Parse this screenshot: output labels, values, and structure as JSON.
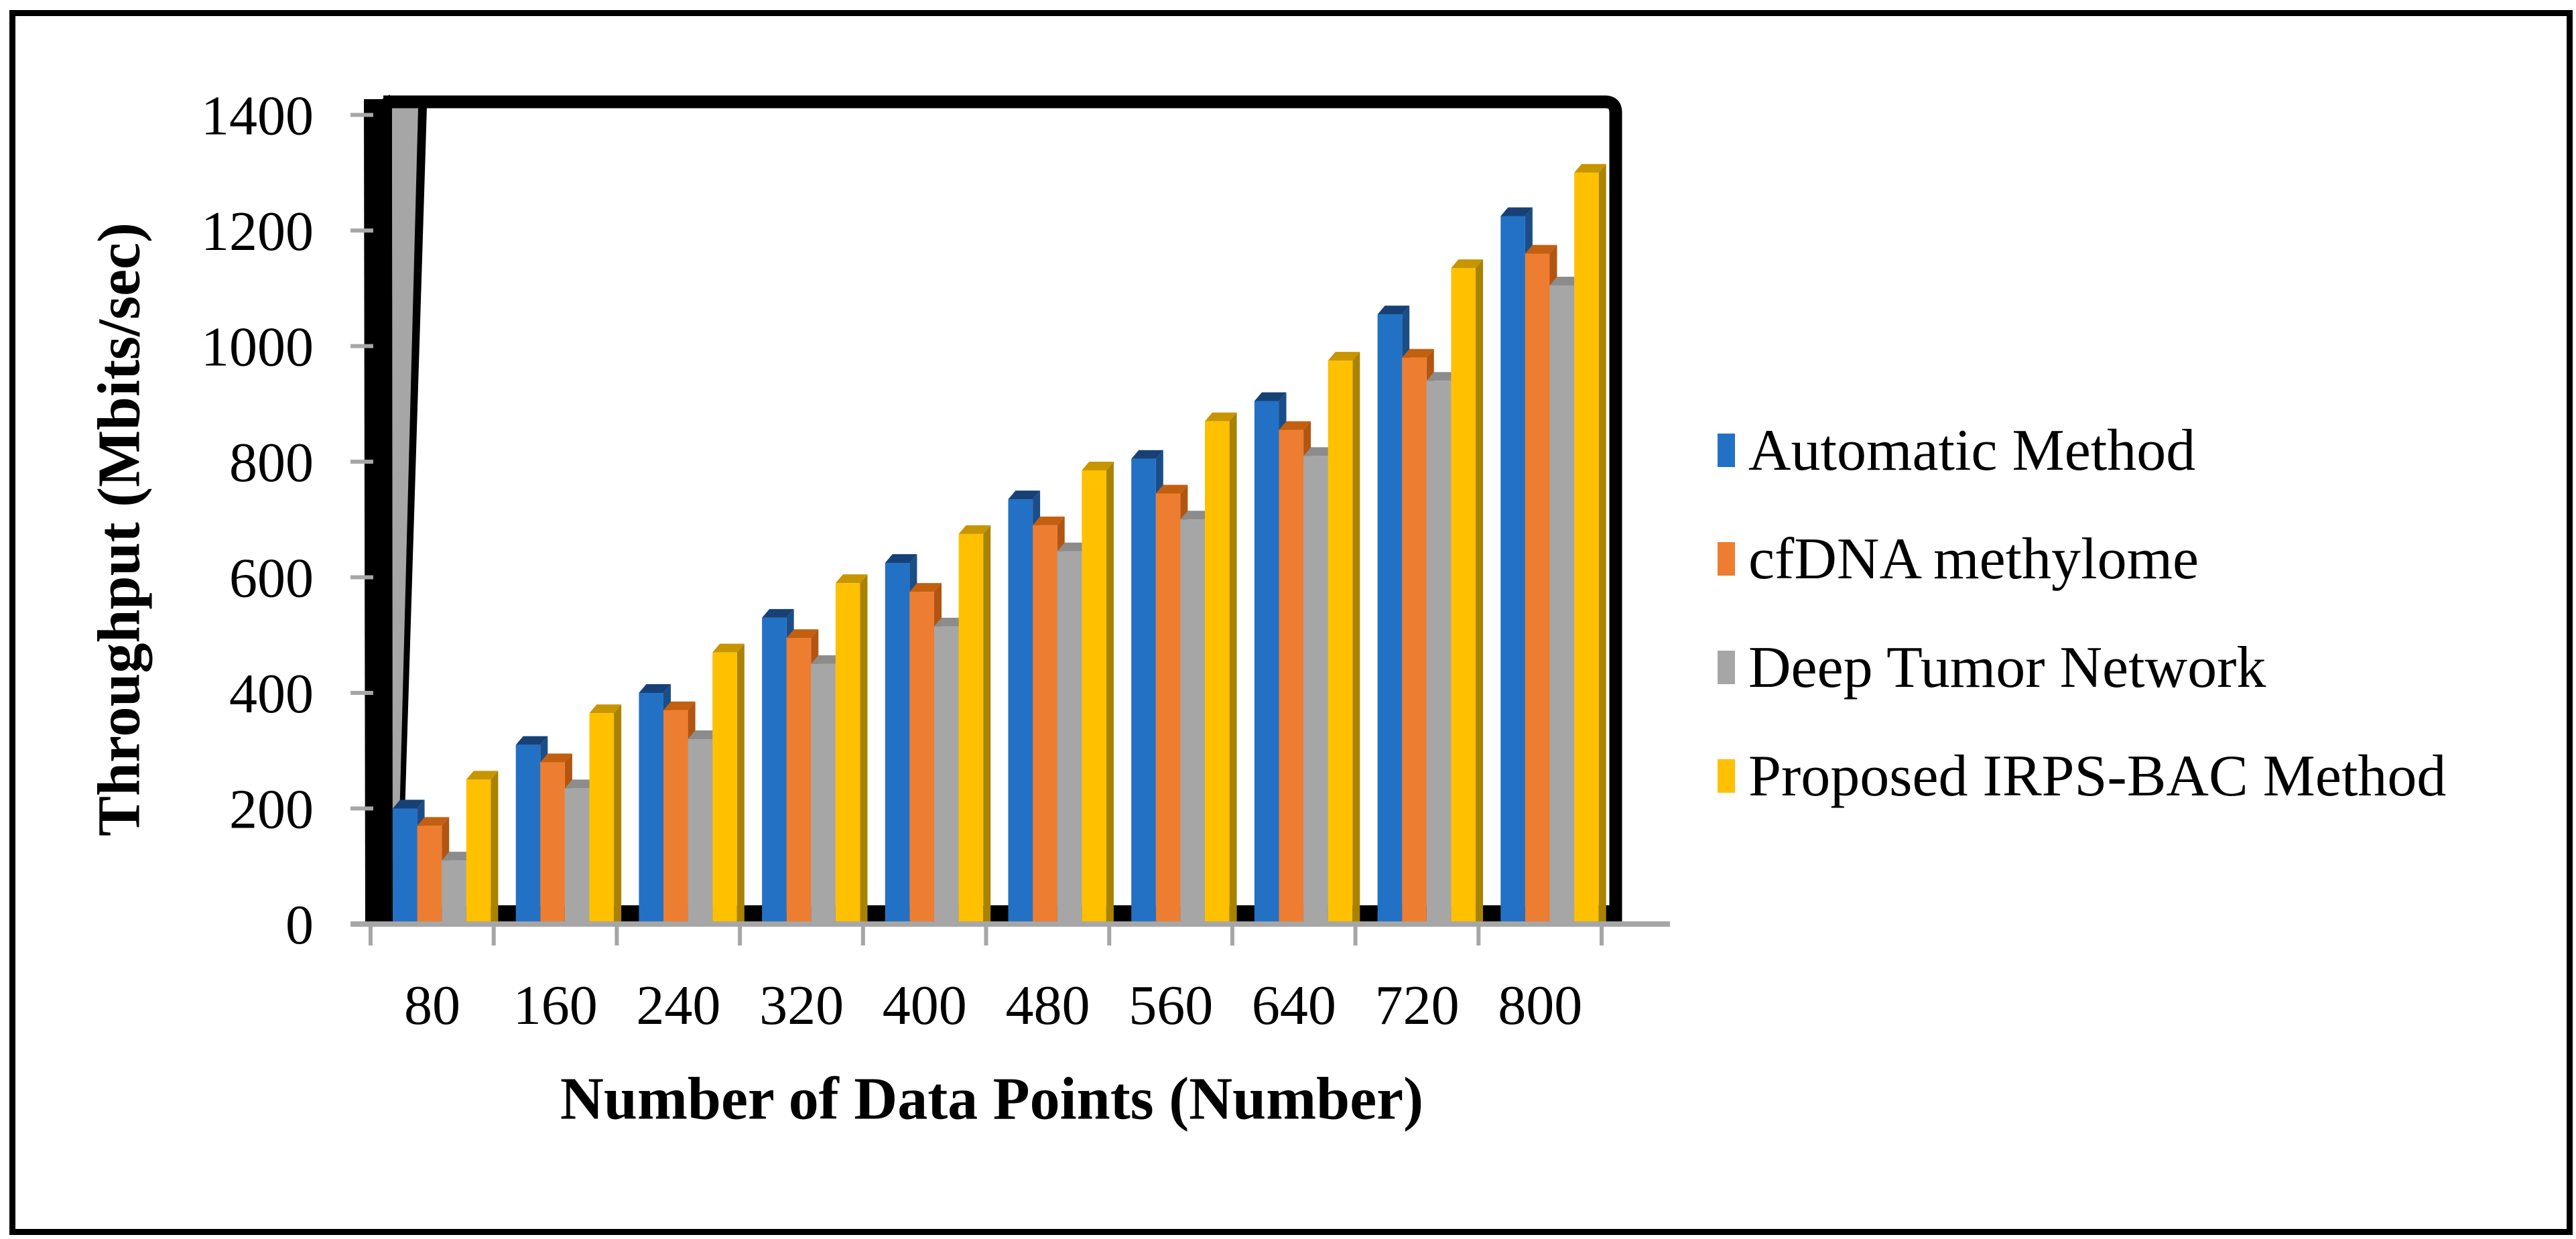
{
  "figure": {
    "background_color": "#ffffff",
    "border_color": "#000000"
  },
  "chart_data": {
    "type": "bar",
    "style": "3d-column",
    "title": "",
    "xlabel": "Number of Data Points (Number)",
    "ylabel": "Throughput (Mbits/sec)",
    "categories": [
      "80",
      "160",
      "240",
      "320",
      "400",
      "480",
      "560",
      "640",
      "720",
      "800"
    ],
    "series": [
      {
        "name": "Automatic Method",
        "color": "#2371C5",
        "color_side": "#1B4E87",
        "color_top": "#174176",
        "values": [
          200,
          310,
          400,
          530,
          625,
          735,
          805,
          905,
          1055,
          1225
        ]
      },
      {
        "name": "cfDNA methylome",
        "color": "#ED7D31",
        "color_side": "#B25510",
        "color_top": "#C2600F",
        "values": [
          170,
          280,
          370,
          495,
          575,
          690,
          745,
          855,
          980,
          1160
        ]
      },
      {
        "name": "Deep Tumor Network",
        "color": "#A6A6A6",
        "color_side": "#7F7F7F",
        "color_top": "#8C8C8C",
        "values": [
          110,
          235,
          320,
          450,
          515,
          645,
          700,
          810,
          940,
          1105
        ]
      },
      {
        "name": "Proposed IRPS-BAC Method",
        "color": "#FFC000",
        "color_side": "#A98200",
        "color_top": "#C79500",
        "values": [
          250,
          365,
          470,
          590,
          675,
          785,
          870,
          975,
          1135,
          1300
        ]
      }
    ],
    "ylim": [
      0,
      1400
    ],
    "yticks": [
      0,
      200,
      400,
      600,
      800,
      1000,
      1200,
      1400
    ],
    "grid": false,
    "legend_position": "right",
    "axis_line_color": "#A6A6A6",
    "frame_color": "#000000"
  }
}
